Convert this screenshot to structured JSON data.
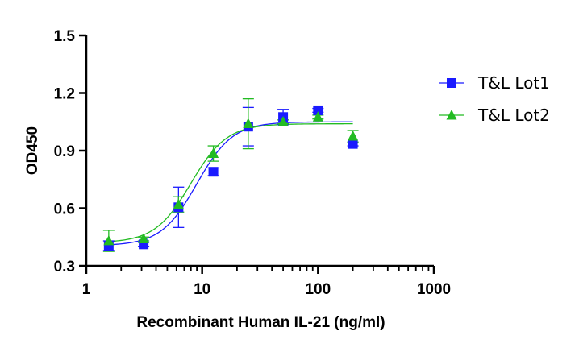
{
  "chart_data": {
    "type": "scatter",
    "title": "",
    "xlabel": "Recombinant Human IL-21 (ng/ml)",
    "ylabel": "OD450",
    "xscale": "log",
    "xlim": [
      1,
      1000
    ],
    "ylim": [
      0.3,
      1.5
    ],
    "xticks": [
      1,
      10,
      100,
      1000
    ],
    "xtick_labels": [
      "1",
      "10",
      "100",
      "1000"
    ],
    "yticks": [
      0.3,
      0.6,
      0.9,
      1.2,
      1.5
    ],
    "ytick_labels": [
      "0.3",
      "0.6",
      "0.9",
      "1.2",
      "1.5"
    ],
    "grid": false,
    "legend_position": "right",
    "series": [
      {
        "name": "T&L Lot1",
        "color": "#1a1aff",
        "marker": "square",
        "x": [
          1.5625,
          3.125,
          6.25,
          12.5,
          25,
          50,
          100,
          200
        ],
        "y": [
          0.405,
          0.412,
          0.605,
          0.79,
          1.025,
          1.075,
          1.11,
          0.935
        ],
        "err": [
          0.025,
          0.01,
          0.105,
          0.02,
          0.1,
          0.04,
          0.01,
          0.01
        ],
        "fit": {
          "bottom": 0.405,
          "top": 1.05,
          "ec50": 9.0,
          "hill": 2.8
        }
      },
      {
        "name": "T&L Lot2",
        "color": "#22bb22",
        "marker": "triangle",
        "x": [
          1.5625,
          3.125,
          6.25,
          12.5,
          25,
          50,
          100,
          200
        ],
        "y": [
          0.43,
          0.44,
          0.62,
          0.885,
          1.04,
          1.05,
          1.075,
          0.975
        ],
        "err": [
          0.055,
          0.01,
          0.04,
          0.04,
          0.13,
          0.01,
          0.01,
          0.03
        ],
        "fit": {
          "bottom": 0.42,
          "top": 1.04,
          "ec50": 8.0,
          "hill": 2.8
        }
      }
    ]
  }
}
